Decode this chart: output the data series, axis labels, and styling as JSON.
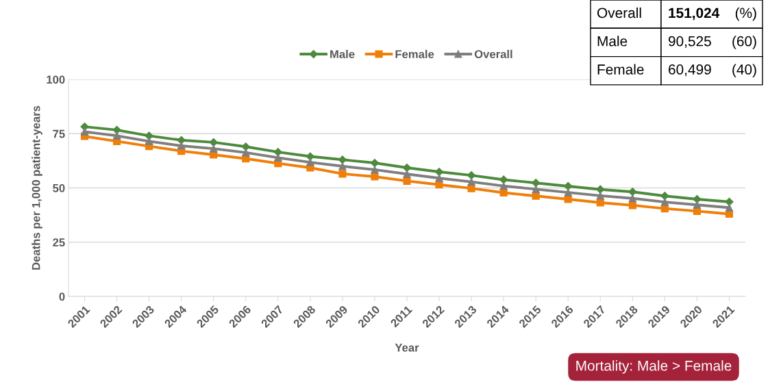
{
  "chart_data": {
    "type": "line",
    "xlabel": "Year",
    "ylabel": "Deaths per 1,000 patient-years",
    "categories": [
      "2001",
      "2002",
      "2003",
      "2004",
      "2005",
      "2006",
      "2007",
      "2008",
      "2009",
      "2010",
      "2011",
      "2012",
      "2013",
      "2014",
      "2015",
      "2016",
      "2017",
      "2018",
      "2019",
      "2020",
      "2021"
    ],
    "series": [
      {
        "name": "Male",
        "color": "#4e8a3e",
        "marker": "diamond",
        "values": [
          78.2,
          76.7,
          74.0,
          72.0,
          71.0,
          69.0,
          66.5,
          64.5,
          63.0,
          61.5,
          59.3,
          57.4,
          55.8,
          53.8,
          52.3,
          50.8,
          49.3,
          48.2,
          46.3,
          44.8,
          43.6
        ]
      },
      {
        "name": "Female",
        "color": "#f07f09",
        "marker": "square",
        "values": [
          73.8,
          71.5,
          69.2,
          67.0,
          65.3,
          63.5,
          61.3,
          59.3,
          56.5,
          55.2,
          53.2,
          51.5,
          49.8,
          47.8,
          46.3,
          44.8,
          43.2,
          42.0,
          40.5,
          39.3,
          38.0
        ]
      },
      {
        "name": "Overall",
        "color": "#7f7f7f",
        "marker": "triangle",
        "values": [
          75.9,
          74.0,
          71.5,
          69.4,
          68.1,
          66.3,
          63.9,
          61.8,
          60.0,
          58.4,
          56.4,
          54.5,
          52.8,
          50.9,
          49.4,
          47.9,
          46.4,
          45.2,
          43.5,
          42.2,
          40.9
        ]
      }
    ],
    "ylim": [
      0,
      100
    ],
    "yticks": [
      0,
      25,
      50,
      75,
      100
    ],
    "grid": "y",
    "legend": "top",
    "annotations": [
      "Overall",
      "151,024",
      "(%)",
      "Male",
      "90,525",
      "(60)",
      "Female",
      "60,499",
      "(40)",
      "Mortality: Male > Female"
    ]
  }
}
